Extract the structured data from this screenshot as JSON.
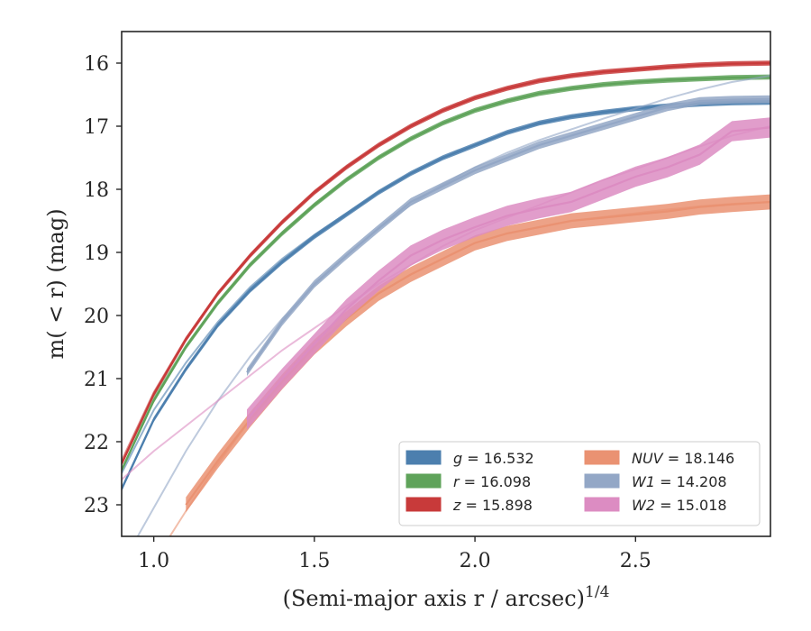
{
  "chart_data": {
    "type": "line",
    "title": "",
    "xlabel_parts": {
      "main": "(Semi-major axis r / arcsec)",
      "sup": "1/4"
    },
    "ylabel": "m( < r) (mag)",
    "xlim": [
      0.9,
      2.92
    ],
    "ylim": [
      23.5,
      15.5
    ],
    "y_inverted": true,
    "xticks": [
      1.0,
      1.5,
      2.0,
      2.5
    ],
    "xtick_labels": [
      "1.0",
      "1.5",
      "2.0",
      "2.5"
    ],
    "yticks": [
      16,
      17,
      18,
      19,
      20,
      21,
      22,
      23
    ],
    "ytick_labels": [
      "16",
      "17",
      "18",
      "19",
      "20",
      "21",
      "22",
      "23"
    ],
    "legend_placement": "lower-right",
    "legend_columns": 2,
    "series": [
      {
        "name": "g = 16.532",
        "color": "#4c7fae",
        "x": [
          0.9,
          1.0,
          1.1,
          1.2,
          1.3,
          1.4,
          1.5,
          1.6,
          1.7,
          1.8,
          1.9,
          2.0,
          2.1,
          2.2,
          2.3,
          2.4,
          2.5,
          2.6,
          2.7,
          2.8,
          2.92
        ],
        "y": [
          22.75,
          21.65,
          20.85,
          20.15,
          19.6,
          19.15,
          18.75,
          18.4,
          18.05,
          17.75,
          17.5,
          17.3,
          17.1,
          16.95,
          16.85,
          16.78,
          16.72,
          16.68,
          16.65,
          16.63,
          16.62
        ],
        "band": 0.04,
        "model_x": [
          0.9,
          1.0,
          1.1,
          1.2,
          1.3,
          1.4,
          1.5,
          1.6,
          1.7,
          1.8,
          1.9,
          2.0,
          2.1,
          2.2,
          2.3,
          2.4,
          2.5,
          2.6,
          2.7,
          2.8,
          2.92
        ],
        "model_y": [
          22.5,
          21.5,
          20.75,
          20.1,
          19.55,
          19.1,
          18.72,
          18.38,
          18.04,
          17.75,
          17.5,
          17.3,
          17.1,
          16.96,
          16.85,
          16.77,
          16.71,
          16.67,
          16.64,
          16.62,
          16.6
        ]
      },
      {
        "name": "r = 16.098",
        "color": "#5fa35a",
        "x": [
          0.9,
          1.0,
          1.1,
          1.2,
          1.3,
          1.4,
          1.5,
          1.6,
          1.7,
          1.8,
          1.9,
          2.0,
          2.1,
          2.2,
          2.3,
          2.4,
          2.5,
          2.6,
          2.7,
          2.8,
          2.92
        ],
        "y": [
          22.45,
          21.35,
          20.5,
          19.8,
          19.2,
          18.7,
          18.25,
          17.85,
          17.5,
          17.2,
          16.95,
          16.75,
          16.6,
          16.48,
          16.4,
          16.34,
          16.3,
          16.27,
          16.25,
          16.23,
          16.22
        ],
        "band": 0.04,
        "model_x": [
          0.9,
          1.0,
          1.1,
          1.2,
          1.3,
          1.4,
          1.5,
          1.6,
          1.7,
          1.8,
          1.9,
          2.0,
          2.1,
          2.2,
          2.3,
          2.4,
          2.5,
          2.6,
          2.7,
          2.8,
          2.92
        ],
        "model_y": [
          22.35,
          21.3,
          20.48,
          19.78,
          19.18,
          18.68,
          18.23,
          17.84,
          17.49,
          17.2,
          16.95,
          16.75,
          16.6,
          16.48,
          16.4,
          16.34,
          16.3,
          16.27,
          16.25,
          16.23,
          16.22
        ]
      },
      {
        "name": "z = 15.898",
        "color": "#c83a3a",
        "x": [
          0.9,
          1.0,
          1.1,
          1.2,
          1.3,
          1.4,
          1.5,
          1.6,
          1.7,
          1.8,
          1.9,
          2.0,
          2.1,
          2.2,
          2.3,
          2.4,
          2.5,
          2.6,
          2.7,
          2.8,
          2.92
        ],
        "y": [
          22.35,
          21.25,
          20.38,
          19.65,
          19.05,
          18.52,
          18.05,
          17.65,
          17.3,
          17.0,
          16.75,
          16.55,
          16.4,
          16.28,
          16.2,
          16.14,
          16.1,
          16.06,
          16.03,
          16.01,
          16.0
        ],
        "band": 0.04,
        "model_x": [
          0.9,
          1.0,
          1.1,
          1.2,
          1.3,
          1.4,
          1.5,
          1.6,
          1.7,
          1.8,
          1.9,
          2.0,
          2.1,
          2.2,
          2.3,
          2.4,
          2.5,
          2.6,
          2.7,
          2.8,
          2.92
        ],
        "model_y": [
          22.3,
          21.22,
          20.36,
          19.64,
          19.04,
          18.51,
          18.04,
          17.64,
          17.3,
          17.0,
          16.75,
          16.55,
          16.4,
          16.28,
          16.2,
          16.14,
          16.1,
          16.06,
          16.03,
          16.01,
          16.0
        ]
      },
      {
        "name": "NUV = 18.146",
        "name_parts": {
          "italic": "NUV",
          "rest": " = 18.146"
        },
        "color": "#ea9272",
        "x": [
          1.1,
          1.2,
          1.3,
          1.4,
          1.5,
          1.6,
          1.7,
          1.8,
          1.9,
          2.0,
          2.1,
          2.2,
          2.3,
          2.4,
          2.5,
          2.6,
          2.7,
          2.8,
          2.92
        ],
        "y": [
          23.0,
          22.3,
          21.65,
          21.05,
          20.5,
          20.05,
          19.65,
          19.35,
          19.1,
          18.85,
          18.7,
          18.6,
          18.5,
          18.45,
          18.4,
          18.35,
          18.28,
          18.24,
          18.2
        ],
        "band": 0.12,
        "model_x": [
          1.05,
          1.1,
          1.2,
          1.3,
          1.4,
          1.5,
          1.6,
          1.7,
          1.8,
          1.9,
          2.0,
          2.1,
          2.2,
          2.3,
          2.4,
          2.5,
          2.6,
          2.7,
          2.8,
          2.92
        ],
        "model_y": [
          23.5,
          23.1,
          22.35,
          21.65,
          21.05,
          20.5,
          20.05,
          19.65,
          19.35,
          19.1,
          18.85,
          18.7,
          18.6,
          18.5,
          18.44,
          18.38,
          18.32,
          18.27,
          18.23,
          18.2
        ]
      },
      {
        "name": "W1 = 14.208",
        "name_parts": {
          "italic": "W1",
          "rest": " = 14.208"
        },
        "color": "#93a7c6",
        "x": [
          1.29,
          1.4,
          1.5,
          1.6,
          1.7,
          1.8,
          1.9,
          2.0,
          2.1,
          2.2,
          2.3,
          2.4,
          2.5,
          2.6,
          2.7,
          2.8,
          2.92
        ],
        "y": [
          20.9,
          20.1,
          19.5,
          19.05,
          18.62,
          18.2,
          17.95,
          17.7,
          17.5,
          17.3,
          17.15,
          17.0,
          16.85,
          16.7,
          16.6,
          16.58,
          16.57
        ],
        "band": 0.06,
        "model_x": [
          0.95,
          1.0,
          1.1,
          1.2,
          1.3,
          1.4,
          1.5,
          1.6,
          1.7,
          1.8,
          1.9,
          2.0,
          2.1,
          2.2,
          2.3,
          2.4,
          2.5,
          2.6,
          2.7,
          2.8,
          2.92
        ],
        "model_y": [
          23.5,
          23.05,
          22.15,
          21.35,
          20.65,
          20.05,
          19.52,
          19.05,
          18.62,
          18.25,
          17.92,
          17.65,
          17.42,
          17.22,
          17.05,
          16.88,
          16.72,
          16.56,
          16.42,
          16.3,
          16.2
        ]
      },
      {
        "name": "W2 = 15.018",
        "name_parts": {
          "italic": "W2",
          "rest": " = 15.018"
        },
        "color": "#dc8cc2",
        "x": [
          1.29,
          1.4,
          1.5,
          1.6,
          1.7,
          1.8,
          1.9,
          2.0,
          2.1,
          2.2,
          2.3,
          2.4,
          2.5,
          2.6,
          2.7,
          2.8,
          2.92
        ],
        "y": [
          21.65,
          21.0,
          20.45,
          19.9,
          19.45,
          19.05,
          18.8,
          18.6,
          18.42,
          18.3,
          18.2,
          18.0,
          17.8,
          17.65,
          17.45,
          17.08,
          17.02
        ],
        "band": 0.16,
        "model_x": [
          0.9,
          1.0,
          1.1,
          1.2,
          1.3,
          1.4,
          1.5,
          1.6,
          1.7,
          1.8,
          1.9,
          2.0,
          2.1,
          2.2,
          2.3,
          2.4,
          2.5,
          2.6,
          2.7,
          2.8,
          2.92
        ],
        "model_y": [
          22.6,
          22.15,
          21.75,
          21.35,
          20.95,
          20.55,
          20.2,
          19.85,
          19.5,
          19.2,
          18.9,
          18.65,
          18.45,
          18.25,
          18.05,
          17.85,
          17.68,
          17.5,
          17.32,
          17.15,
          17.0
        ]
      }
    ]
  }
}
